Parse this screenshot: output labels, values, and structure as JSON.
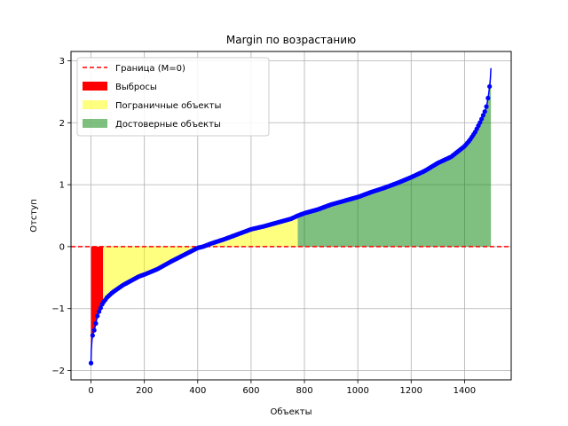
{
  "chart_data": {
    "type": "line",
    "title": "Margin по возрастанию",
    "xlabel": "Объекты",
    "ylabel": "Отступ",
    "xlim": [
      -75,
      1575
    ],
    "ylim": [
      -2.15,
      3.15
    ],
    "xticks": [
      0,
      200,
      400,
      600,
      800,
      1000,
      1200,
      1400
    ],
    "yticks": [
      -2,
      -1,
      0,
      1,
      2,
      3
    ],
    "grid": true,
    "legend_position": "top-left",
    "boundary": {
      "name": "Граница (M=0)",
      "y": 0,
      "color": "#ff0000"
    },
    "regions": [
      {
        "name": "Выбросы",
        "x_start": 0,
        "x_end": 45,
        "color": "#ff0000"
      },
      {
        "name": "Пограничные объекты",
        "x_start": 45,
        "x_end": 775,
        "color": "#ffff00"
      },
      {
        "name": "Достоверные объекты",
        "x_start": 775,
        "x_end": 1499,
        "color": "#008000"
      }
    ],
    "series": [
      {
        "color": "#0000ff",
        "x": [
          0,
          1,
          3,
          5,
          8,
          12,
          16,
          20,
          25,
          30,
          35,
          40,
          45,
          50,
          60,
          70,
          80,
          100,
          120,
          150,
          180,
          200,
          250,
          300,
          350,
          400,
          420,
          450,
          500,
          550,
          600,
          650,
          700,
          750,
          775,
          800,
          850,
          900,
          950,
          1000,
          1050,
          1100,
          1150,
          1200,
          1250,
          1300,
          1350,
          1400,
          1420,
          1440,
          1460,
          1470,
          1480,
          1485,
          1490,
          1493,
          1495,
          1497,
          1499
        ],
        "y": [
          -1.88,
          -1.68,
          -1.55,
          -1.45,
          -1.4,
          -1.35,
          -1.28,
          -1.2,
          -1.1,
          -1.05,
          -1.0,
          -0.95,
          -0.9,
          -0.88,
          -0.82,
          -0.78,
          -0.74,
          -0.68,
          -0.62,
          -0.55,
          -0.48,
          -0.45,
          -0.36,
          -0.24,
          -0.13,
          -0.02,
          0.0,
          0.05,
          0.12,
          0.2,
          0.28,
          0.33,
          0.39,
          0.45,
          0.5,
          0.54,
          0.6,
          0.68,
          0.74,
          0.8,
          0.88,
          0.95,
          1.03,
          1.12,
          1.22,
          1.35,
          1.45,
          1.62,
          1.72,
          1.85,
          2.02,
          2.12,
          2.22,
          2.32,
          2.45,
          2.55,
          2.62,
          2.72,
          2.88
        ]
      }
    ]
  }
}
